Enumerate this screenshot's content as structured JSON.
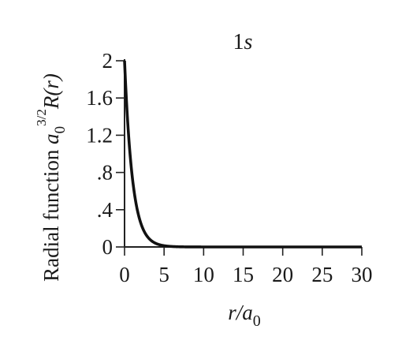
{
  "chart_data": {
    "type": "line",
    "title_main": "1",
    "title_italic": "s",
    "xlabel": {
      "italic": "r/a",
      "sub": "0"
    },
    "ylabel": {
      "text": "Radial function ",
      "a": "a",
      "sub": "0",
      "sup": "3/2",
      "func": "R(r)"
    },
    "xlim": [
      0,
      30
    ],
    "ylim": [
      0,
      2
    ],
    "x_ticks": [
      0,
      5,
      10,
      15,
      20,
      25,
      30
    ],
    "x_tick_labels": [
      "0",
      "5",
      "10",
      "15",
      "20",
      "25",
      "30"
    ],
    "y_ticks": [
      0,
      0.4,
      0.8,
      1.2,
      1.6,
      2
    ],
    "y_tick_labels": [
      "0",
      ".4",
      ".8",
      "1.2",
      "1.6",
      "2"
    ],
    "grid": false,
    "series": [
      {
        "function": "2*exp(-x)",
        "x": [
          0,
          0.25,
          0.5,
          0.75,
          1,
          1.5,
          2,
          2.5,
          3,
          4,
          5,
          6,
          8,
          10,
          15,
          20,
          25,
          30
        ],
        "y": [
          2,
          1.558,
          1.213,
          0.945,
          0.736,
          0.446,
          0.271,
          0.164,
          0.1,
          0.037,
          0.013,
          0.005,
          0.001,
          0,
          0,
          0,
          0,
          0
        ],
        "color": "#111111"
      }
    ]
  }
}
